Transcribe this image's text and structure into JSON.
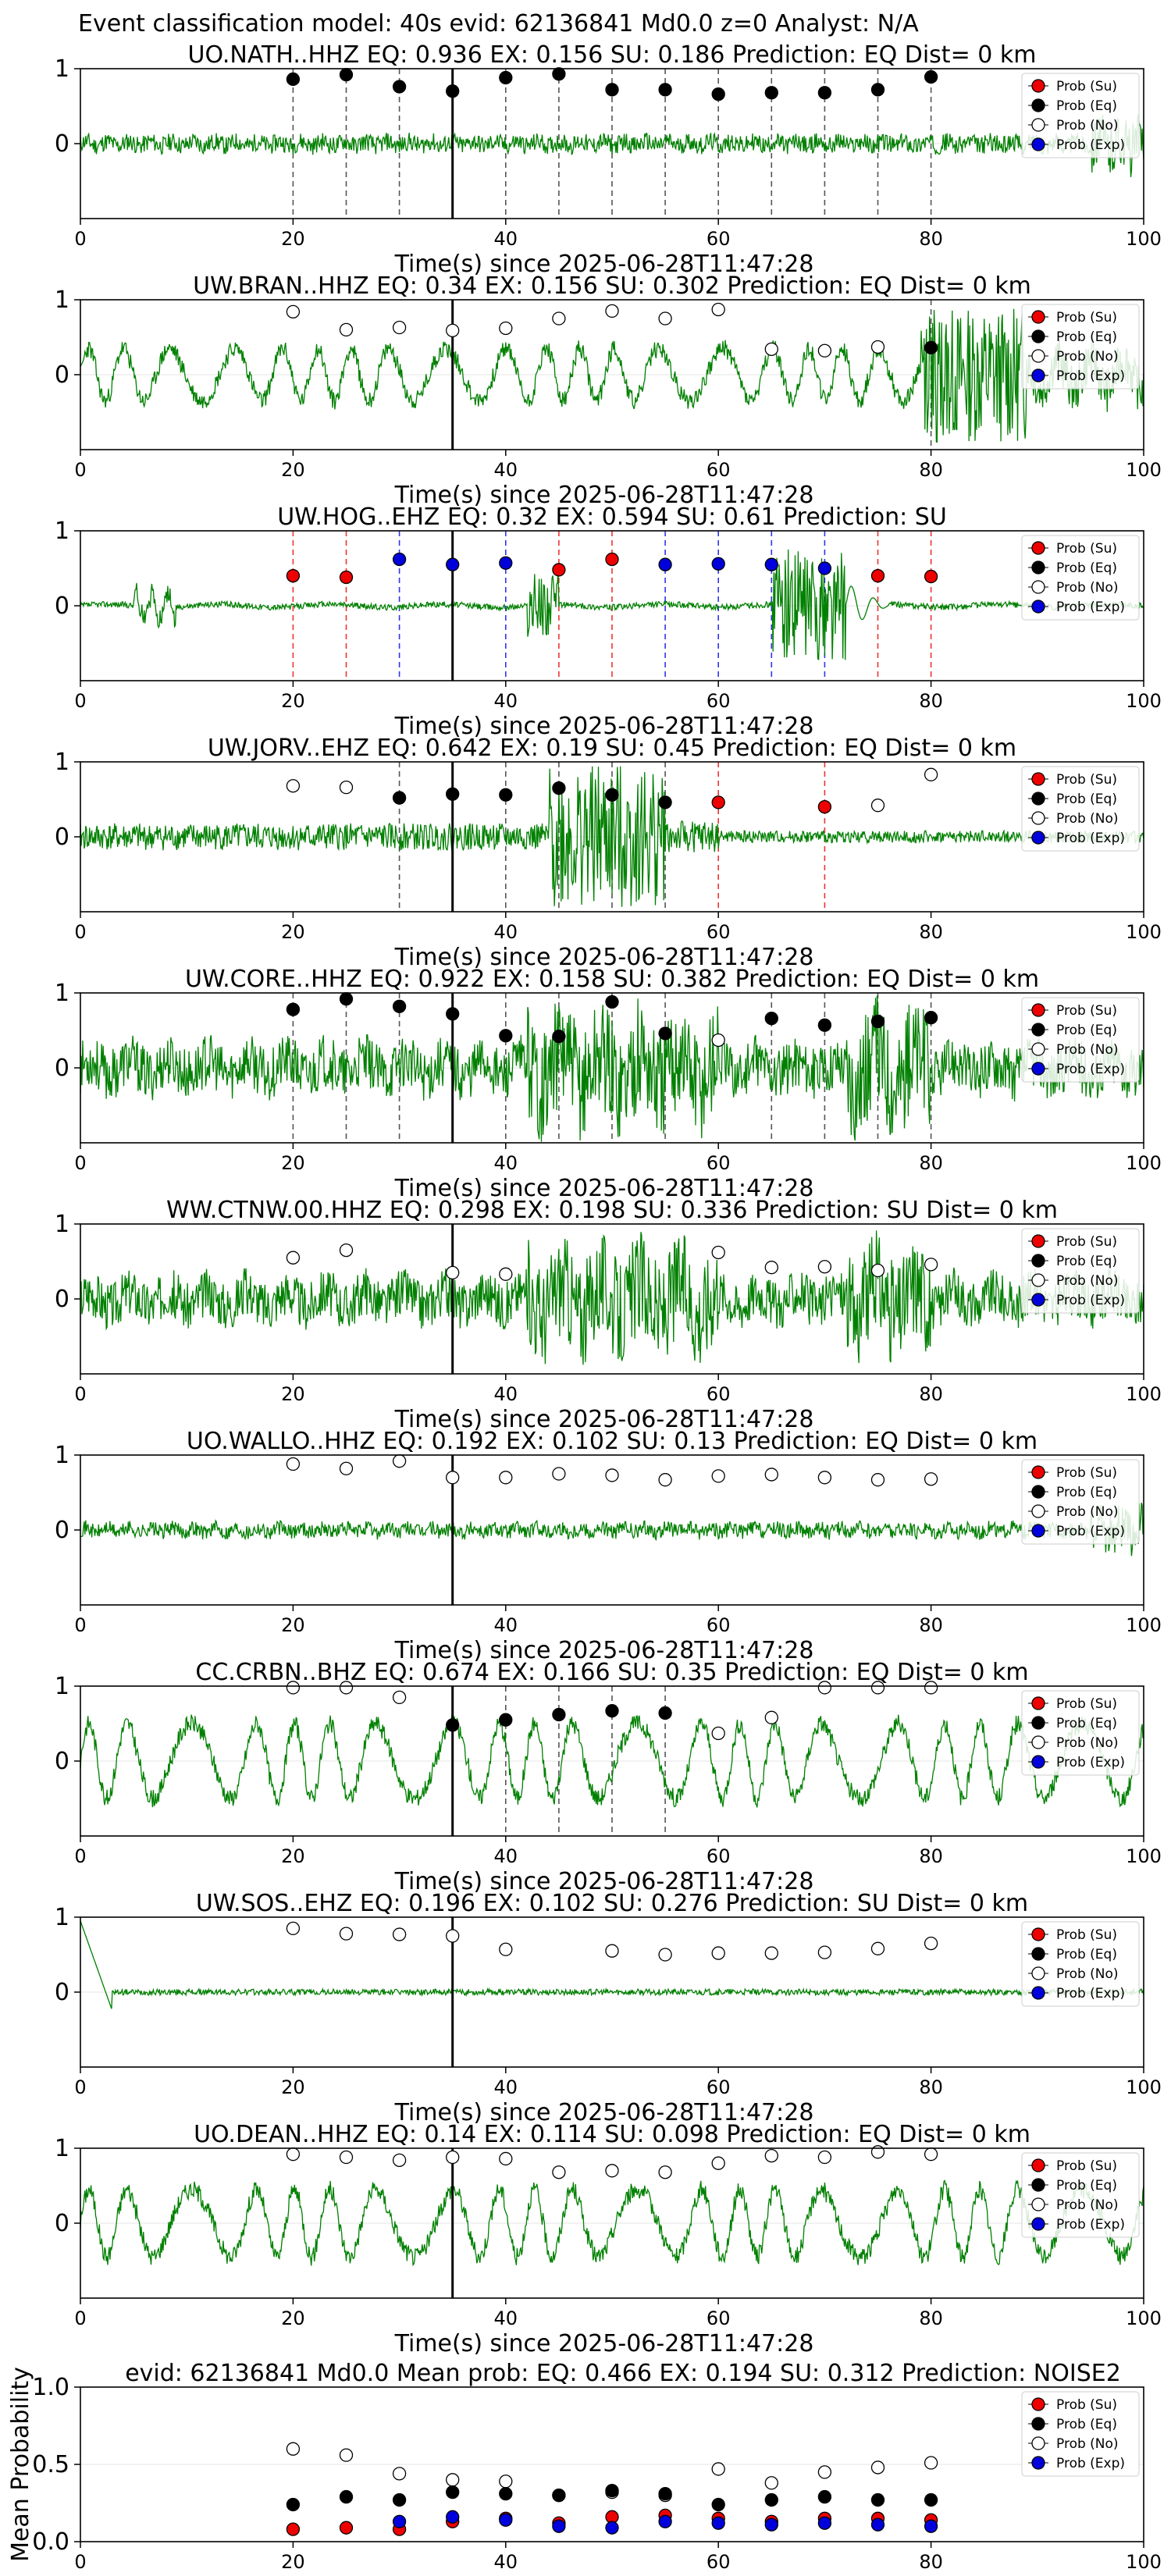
{
  "suptitle": "Event classification model: 40s evid: 62136841 Md0.0 z=0 Analyst: N/A",
  "legend_labels": [
    "Prob (Su)",
    "Prob (Eq)",
    "Prob (No)",
    "Prob (Exp)"
  ],
  "colors": {
    "su": "#ee0000",
    "eq": "#000000",
    "no": "#ffffff",
    "exp": "#0000dd",
    "waveform": "#008000",
    "eq_line": "#555555",
    "su_line": "#ee3333",
    "exp_line": "#3333ee"
  },
  "x_ticks": [
    "0",
    "20",
    "40",
    "60",
    "80",
    "100"
  ],
  "xlim": [
    0,
    100
  ],
  "pick_time": 35,
  "chart_data": [
    {
      "type": "line",
      "title": "UO.NATH..HHZ   EQ: 0.936  EX: 0.156  SU: 0.186   Prediction: EQ    Dist= 0 km",
      "xlabel": "Time(s) since 2025-06-28T11:47:28",
      "y_ticks": [
        "1",
        "0"
      ],
      "ylim": [
        -1,
        1
      ],
      "waveform": {
        "style": "noise-low",
        "seed": 11,
        "amp": 0.12
      },
      "points": [
        {
          "x": 20,
          "y": 0.86,
          "cls": "eq"
        },
        {
          "x": 25,
          "y": 0.92,
          "cls": "eq"
        },
        {
          "x": 30,
          "y": 0.76,
          "cls": "eq"
        },
        {
          "x": 35,
          "y": 0.7,
          "cls": "eq"
        },
        {
          "x": 40,
          "y": 0.88,
          "cls": "eq"
        },
        {
          "x": 45,
          "y": 0.93,
          "cls": "eq"
        },
        {
          "x": 50,
          "y": 0.72,
          "cls": "eq"
        },
        {
          "x": 55,
          "y": 0.72,
          "cls": "eq"
        },
        {
          "x": 60,
          "y": 0.66,
          "cls": "eq"
        },
        {
          "x": 65,
          "y": 0.68,
          "cls": "eq"
        },
        {
          "x": 70,
          "y": 0.68,
          "cls": "eq"
        },
        {
          "x": 75,
          "y": 0.72,
          "cls": "eq"
        },
        {
          "x": 80,
          "y": 0.89,
          "cls": "eq"
        }
      ]
    },
    {
      "type": "line",
      "title": "UW.BRAN..HHZ   EQ: 0.34  EX: 0.156  SU: 0.302   Prediction: EQ    Dist= 0 km",
      "xlabel": "Time(s) since 2025-06-28T11:47:28",
      "y_ticks": [
        "1",
        "0"
      ],
      "ylim": [
        -1,
        1
      ],
      "waveform": {
        "style": "oscill-burst-end",
        "seed": 23,
        "amp": 0.35
      },
      "points": [
        {
          "x": 20,
          "y": 0.84,
          "cls": "no"
        },
        {
          "x": 25,
          "y": 0.6,
          "cls": "no"
        },
        {
          "x": 30,
          "y": 0.63,
          "cls": "no"
        },
        {
          "x": 35,
          "y": 0.59,
          "cls": "no"
        },
        {
          "x": 40,
          "y": 0.62,
          "cls": "no"
        },
        {
          "x": 45,
          "y": 0.75,
          "cls": "no"
        },
        {
          "x": 50,
          "y": 0.85,
          "cls": "no"
        },
        {
          "x": 55,
          "y": 0.75,
          "cls": "no"
        },
        {
          "x": 60,
          "y": 0.87,
          "cls": "no"
        },
        {
          "x": 65,
          "y": 0.34,
          "cls": "no"
        },
        {
          "x": 70,
          "y": 0.32,
          "cls": "no"
        },
        {
          "x": 75,
          "y": 0.37,
          "cls": "no"
        },
        {
          "x": 80,
          "y": 0.36,
          "cls": "eq"
        }
      ]
    },
    {
      "type": "line",
      "title": "UW.HOG..EHZ   EQ: 0.32  EX: 0.594  SU: 0.61   Prediction: SU",
      "xlabel": "Time(s) since 2025-06-28T11:47:28",
      "y_ticks": [
        "1",
        "0"
      ],
      "ylim": [
        -1,
        1
      ],
      "waveform": {
        "style": "quiet-spikes",
        "seed": 37,
        "amp": 0.12
      },
      "points": [
        {
          "x": 20,
          "y": 0.4,
          "cls": "su"
        },
        {
          "x": 25,
          "y": 0.38,
          "cls": "su"
        },
        {
          "x": 30,
          "y": 0.62,
          "cls": "exp"
        },
        {
          "x": 35,
          "y": 0.55,
          "cls": "exp"
        },
        {
          "x": 40,
          "y": 0.57,
          "cls": "exp"
        },
        {
          "x": 45,
          "y": 0.48,
          "cls": "su"
        },
        {
          "x": 50,
          "y": 0.62,
          "cls": "su"
        },
        {
          "x": 55,
          "y": 0.55,
          "cls": "exp"
        },
        {
          "x": 60,
          "y": 0.56,
          "cls": "exp"
        },
        {
          "x": 65,
          "y": 0.55,
          "cls": "exp"
        },
        {
          "x": 70,
          "y": 0.5,
          "cls": "exp"
        },
        {
          "x": 75,
          "y": 0.4,
          "cls": "su"
        },
        {
          "x": 80,
          "y": 0.39,
          "cls": "su"
        }
      ]
    },
    {
      "type": "line",
      "title": "UW.JORV..EHZ   EQ: 0.642  EX: 0.19  SU: 0.45   Prediction: EQ    Dist= 0 km",
      "xlabel": "Time(s) since 2025-06-28T11:47:28",
      "y_ticks": [
        "1",
        "0"
      ],
      "ylim": [
        -1,
        1
      ],
      "waveform": {
        "style": "burst-mid",
        "seed": 41,
        "amp": 0.18
      },
      "points": [
        {
          "x": 20,
          "y": 0.68,
          "cls": "no"
        },
        {
          "x": 25,
          "y": 0.66,
          "cls": "no"
        },
        {
          "x": 30,
          "y": 0.52,
          "cls": "eq"
        },
        {
          "x": 35,
          "y": 0.57,
          "cls": "eq"
        },
        {
          "x": 40,
          "y": 0.56,
          "cls": "eq"
        },
        {
          "x": 45,
          "y": 0.65,
          "cls": "eq"
        },
        {
          "x": 50,
          "y": 0.56,
          "cls": "eq"
        },
        {
          "x": 55,
          "y": 0.46,
          "cls": "eq"
        },
        {
          "x": 60,
          "y": 0.46,
          "cls": "su"
        },
        {
          "x": 70,
          "y": 0.4,
          "cls": "su"
        },
        {
          "x": 75,
          "y": 0.42,
          "cls": "no"
        },
        {
          "x": 80,
          "y": 0.83,
          "cls": "no"
        }
      ]
    },
    {
      "type": "line",
      "title": "UW.CORE..HHZ   EQ: 0.922  EX: 0.158  SU: 0.382   Prediction: EQ    Dist= 0 km",
      "xlabel": "Time(s) since 2025-06-28T11:47:28",
      "y_ticks": [
        "1",
        "0"
      ],
      "ylim": [
        -1,
        1
      ],
      "waveform": {
        "style": "noise-high",
        "seed": 53,
        "amp": 0.35
      },
      "points": [
        {
          "x": 20,
          "y": 0.78,
          "cls": "eq"
        },
        {
          "x": 25,
          "y": 0.92,
          "cls": "eq"
        },
        {
          "x": 30,
          "y": 0.82,
          "cls": "eq"
        },
        {
          "x": 35,
          "y": 0.72,
          "cls": "eq"
        },
        {
          "x": 40,
          "y": 0.43,
          "cls": "eq"
        },
        {
          "x": 45,
          "y": 0.42,
          "cls": "eq"
        },
        {
          "x": 50,
          "y": 0.88,
          "cls": "eq"
        },
        {
          "x": 55,
          "y": 0.46,
          "cls": "eq"
        },
        {
          "x": 60,
          "y": 0.37,
          "cls": "no"
        },
        {
          "x": 65,
          "y": 0.66,
          "cls": "eq"
        },
        {
          "x": 70,
          "y": 0.57,
          "cls": "eq"
        },
        {
          "x": 75,
          "y": 0.62,
          "cls": "eq"
        },
        {
          "x": 80,
          "y": 0.67,
          "cls": "eq"
        }
      ]
    },
    {
      "type": "line",
      "title": "WW.CTNW.00.HHZ   EQ: 0.298  EX: 0.198  SU: 0.336   Prediction: SU    Dist= 0 km",
      "xlabel": "Time(s) since 2025-06-28T11:47:28",
      "y_ticks": [
        "1",
        "0"
      ],
      "ylim": [
        -1,
        1
      ],
      "waveform": {
        "style": "noise-high",
        "seed": 67,
        "amp": 0.32
      },
      "points": [
        {
          "x": 20,
          "y": 0.55,
          "cls": "no"
        },
        {
          "x": 25,
          "y": 0.65,
          "cls": "no"
        },
        {
          "x": 35,
          "y": 0.35,
          "cls": "no"
        },
        {
          "x": 40,
          "y": 0.33,
          "cls": "no"
        },
        {
          "x": 60,
          "y": 0.62,
          "cls": "no"
        },
        {
          "x": 65,
          "y": 0.42,
          "cls": "no"
        },
        {
          "x": 70,
          "y": 0.43,
          "cls": "no"
        },
        {
          "x": 75,
          "y": 0.38,
          "cls": "no"
        },
        {
          "x": 80,
          "y": 0.46,
          "cls": "no"
        }
      ]
    },
    {
      "type": "line",
      "title": "UO.WALLO..HHZ   EQ: 0.192  EX: 0.102  SU: 0.13   Prediction: EQ    Dist= 0 km",
      "xlabel": "Time(s) since 2025-06-28T11:47:28",
      "y_ticks": [
        "1",
        "0"
      ],
      "ylim": [
        -1,
        1
      ],
      "waveform": {
        "style": "noise-low",
        "seed": 71,
        "amp": 0.1
      },
      "points": [
        {
          "x": 20,
          "y": 0.88,
          "cls": "no"
        },
        {
          "x": 25,
          "y": 0.82,
          "cls": "no"
        },
        {
          "x": 30,
          "y": 0.92,
          "cls": "no"
        },
        {
          "x": 35,
          "y": 0.7,
          "cls": "no"
        },
        {
          "x": 40,
          "y": 0.7,
          "cls": "no"
        },
        {
          "x": 45,
          "y": 0.75,
          "cls": "no"
        },
        {
          "x": 50,
          "y": 0.73,
          "cls": "no"
        },
        {
          "x": 55,
          "y": 0.67,
          "cls": "no"
        },
        {
          "x": 60,
          "y": 0.72,
          "cls": "no"
        },
        {
          "x": 65,
          "y": 0.74,
          "cls": "no"
        },
        {
          "x": 70,
          "y": 0.7,
          "cls": "no"
        },
        {
          "x": 75,
          "y": 0.67,
          "cls": "no"
        },
        {
          "x": 80,
          "y": 0.68,
          "cls": "no"
        }
      ]
    },
    {
      "type": "line",
      "title": "CC.CRBN..BHZ   EQ: 0.674  EX: 0.166  SU: 0.35   Prediction: EQ    Dist= 0 km",
      "xlabel": "Time(s) since 2025-06-28T11:47:28",
      "y_ticks": [
        "1",
        "0"
      ],
      "ylim": [
        -1,
        1
      ],
      "waveform": {
        "style": "oscill",
        "seed": 83,
        "amp": 0.5
      },
      "points": [
        {
          "x": 20,
          "y": 0.98,
          "cls": "no"
        },
        {
          "x": 25,
          "y": 0.98,
          "cls": "no"
        },
        {
          "x": 30,
          "y": 0.85,
          "cls": "no"
        },
        {
          "x": 35,
          "y": 0.48,
          "cls": "eq"
        },
        {
          "x": 40,
          "y": 0.55,
          "cls": "eq"
        },
        {
          "x": 45,
          "y": 0.62,
          "cls": "eq"
        },
        {
          "x": 50,
          "y": 0.67,
          "cls": "eq"
        },
        {
          "x": 55,
          "y": 0.64,
          "cls": "eq"
        },
        {
          "x": 60,
          "y": 0.37,
          "cls": "no"
        },
        {
          "x": 65,
          "y": 0.58,
          "cls": "no"
        },
        {
          "x": 70,
          "y": 0.98,
          "cls": "no"
        },
        {
          "x": 75,
          "y": 0.98,
          "cls": "no"
        },
        {
          "x": 80,
          "y": 0.98,
          "cls": "no"
        }
      ]
    },
    {
      "type": "line",
      "title": "UW.SOS..EHZ   EQ: 0.196  EX: 0.102  SU: 0.276   Prediction: SU    Dist= 0 km",
      "xlabel": "Time(s) since 2025-06-28T11:47:28",
      "y_ticks": [
        "1",
        "0"
      ],
      "ylim": [
        -1,
        1
      ],
      "waveform": {
        "style": "flat-start-spike",
        "seed": 97,
        "amp": 0.04
      },
      "points": [
        {
          "x": 20,
          "y": 0.85,
          "cls": "no"
        },
        {
          "x": 25,
          "y": 0.78,
          "cls": "no"
        },
        {
          "x": 30,
          "y": 0.77,
          "cls": "no"
        },
        {
          "x": 35,
          "y": 0.75,
          "cls": "no"
        },
        {
          "x": 40,
          "y": 0.57,
          "cls": "no"
        },
        {
          "x": 50,
          "y": 0.55,
          "cls": "no"
        },
        {
          "x": 55,
          "y": 0.5,
          "cls": "no"
        },
        {
          "x": 60,
          "y": 0.52,
          "cls": "no"
        },
        {
          "x": 65,
          "y": 0.52,
          "cls": "no"
        },
        {
          "x": 70,
          "y": 0.53,
          "cls": "no"
        },
        {
          "x": 75,
          "y": 0.58,
          "cls": "no"
        },
        {
          "x": 80,
          "y": 0.65,
          "cls": "no"
        }
      ]
    },
    {
      "type": "line",
      "title": "UO.DEAN..HHZ   EQ: 0.14  EX: 0.114  SU: 0.098   Prediction: EQ    Dist= 0 km",
      "xlabel": "Time(s) since 2025-06-28T11:47:28",
      "y_ticks": [
        "1",
        "0"
      ],
      "ylim": [
        -1,
        1
      ],
      "waveform": {
        "style": "oscill",
        "seed": 101,
        "amp": 0.45
      },
      "points": [
        {
          "x": 20,
          "y": 0.92,
          "cls": "no"
        },
        {
          "x": 25,
          "y": 0.88,
          "cls": "no"
        },
        {
          "x": 30,
          "y": 0.84,
          "cls": "no"
        },
        {
          "x": 35,
          "y": 0.88,
          "cls": "no"
        },
        {
          "x": 40,
          "y": 0.86,
          "cls": "no"
        },
        {
          "x": 45,
          "y": 0.68,
          "cls": "no"
        },
        {
          "x": 50,
          "y": 0.7,
          "cls": "no"
        },
        {
          "x": 55,
          "y": 0.68,
          "cls": "no"
        },
        {
          "x": 60,
          "y": 0.8,
          "cls": "no"
        },
        {
          "x": 65,
          "y": 0.9,
          "cls": "no"
        },
        {
          "x": 70,
          "y": 0.88,
          "cls": "no"
        },
        {
          "x": 75,
          "y": 0.95,
          "cls": "no"
        },
        {
          "x": 80,
          "y": 0.92,
          "cls": "no"
        }
      ]
    },
    {
      "type": "scatter",
      "title": "evid: 62136841  Md0.0   Mean prob:   EQ: 0.466  EX: 0.194  SU: 0.312   Prediction: NOISE2",
      "xlabel": "",
      "ylabel": "Mean Probability",
      "y_ticks": [
        "1.0",
        "0.5",
        "0.0"
      ],
      "ylim": [
        0,
        1
      ],
      "series": [
        {
          "cls": "no",
          "x": [
            20,
            25,
            30,
            35,
            40,
            45,
            50,
            55,
            60,
            65,
            70,
            75,
            80
          ],
          "values": [
            0.6,
            0.56,
            0.44,
            0.4,
            0.39,
            0.3,
            0.32,
            0.3,
            0.47,
            0.38,
            0.45,
            0.48,
            0.51
          ]
        },
        {
          "cls": "eq",
          "x": [
            20,
            25,
            30,
            35,
            40,
            45,
            50,
            55,
            60,
            65,
            70,
            75,
            80
          ],
          "values": [
            0.24,
            0.29,
            0.27,
            0.32,
            0.31,
            0.3,
            0.33,
            0.31,
            0.24,
            0.27,
            0.29,
            0.27,
            0.27
          ]
        },
        {
          "cls": "su",
          "x": [
            20,
            25,
            30,
            35,
            40,
            45,
            50,
            55,
            60,
            65,
            70,
            75,
            80
          ],
          "values": [
            0.08,
            0.09,
            0.08,
            0.13,
            0.15,
            0.12,
            0.16,
            0.17,
            0.15,
            0.13,
            0.15,
            0.15,
            0.14
          ]
        },
        {
          "cls": "exp",
          "x": [
            30,
            35,
            40,
            45,
            50,
            55,
            60,
            65,
            70,
            75,
            80
          ],
          "values": [
            0.13,
            0.16,
            0.14,
            0.1,
            0.09,
            0.13,
            0.12,
            0.11,
            0.12,
            0.11,
            0.1
          ]
        }
      ]
    }
  ]
}
